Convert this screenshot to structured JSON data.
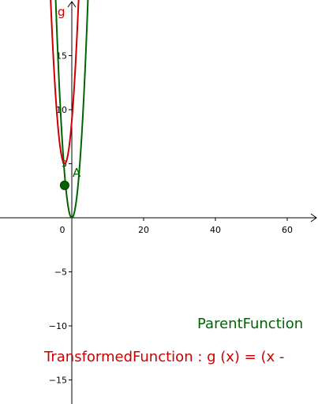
{
  "chart_data": {
    "type": "line",
    "xlim": [
      -20,
      68
    ],
    "ylim": [
      -18,
      27
    ],
    "x_ticks": [
      0,
      20,
      40,
      60
    ],
    "y_ticks": [
      -15,
      -10,
      -5,
      5,
      10,
      15
    ],
    "x_tick_labels": [
      "0",
      "20",
      "40",
      "60"
    ],
    "y_tick_labels": [
      "−15",
      "−10",
      "−5",
      "5",
      "10",
      "15"
    ],
    "grid": false,
    "series": [
      {
        "name": "ParentFunction",
        "color": "#006400",
        "expression": "x^2",
        "vertex": [
          0,
          0
        ]
      },
      {
        "name": "TransformedFunction",
        "function_label": "g",
        "color": "#cc0000",
        "expression": "(x + 2)^2 + 5",
        "vertex": [
          -2,
          5
        ]
      }
    ],
    "points": [
      {
        "name": "A",
        "x": -2,
        "y": 3,
        "color": "#006400"
      }
    ],
    "annotations": {
      "parent_text": "ParentFunction",
      "transformed_text": "TransformedFunction : g (x)  =  (x -"
    }
  }
}
